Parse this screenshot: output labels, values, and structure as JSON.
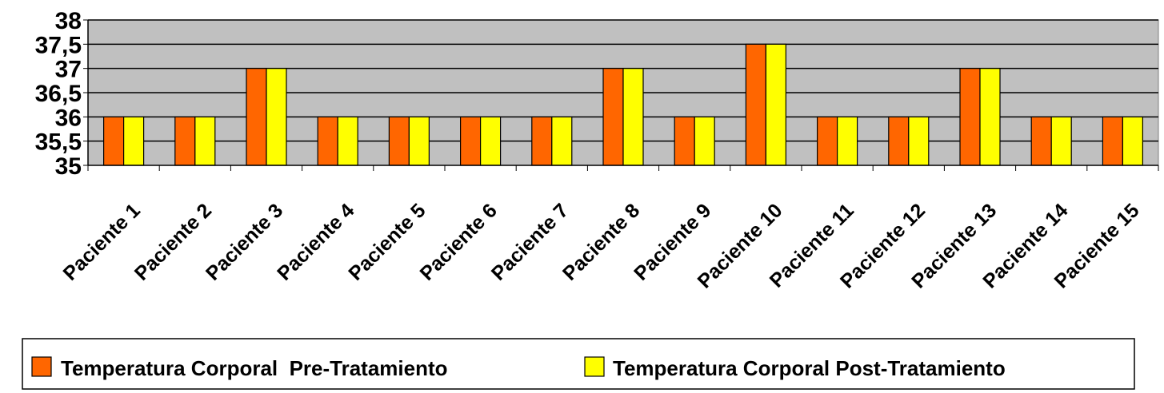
{
  "chart_data": {
    "type": "bar",
    "categories": [
      "Paciente 1",
      "Paciente 2",
      "Paciente 3",
      "Paciente 4",
      "Paciente 5",
      "Paciente 6",
      "Paciente 7",
      "Paciente 8",
      "Paciente 9",
      "Paciente 10",
      "Paciente 11",
      "Paciente 12",
      "Paciente 13",
      "Paciente 14",
      "Paciente 15"
    ],
    "series": [
      {
        "name": "Temperatura Corporal  Pre-Tratamiento",
        "color": "#FF6600",
        "values": [
          36,
          36,
          37,
          36,
          36,
          36,
          36,
          37,
          36,
          37.5,
          36,
          36,
          37,
          36,
          36
        ]
      },
      {
        "name": "Temperatura Corporal Post-Tratamiento",
        "color": "#FFFF00",
        "values": [
          36,
          36,
          37,
          36,
          36,
          36,
          36,
          37,
          36,
          37.5,
          36,
          36,
          37,
          36,
          36
        ]
      }
    ],
    "ylim": [
      35,
      38
    ],
    "yticks": [
      35,
      35.5,
      36,
      36.5,
      37,
      37.5,
      38
    ],
    "ytick_labels": [
      "35",
      "35,5",
      "36",
      "36,5",
      "37",
      "37,5",
      "38"
    ],
    "grid": true,
    "plot_background": "#C0C0C0",
    "legend_position": "bottom",
    "title": "",
    "xlabel": "",
    "ylabel": ""
  }
}
